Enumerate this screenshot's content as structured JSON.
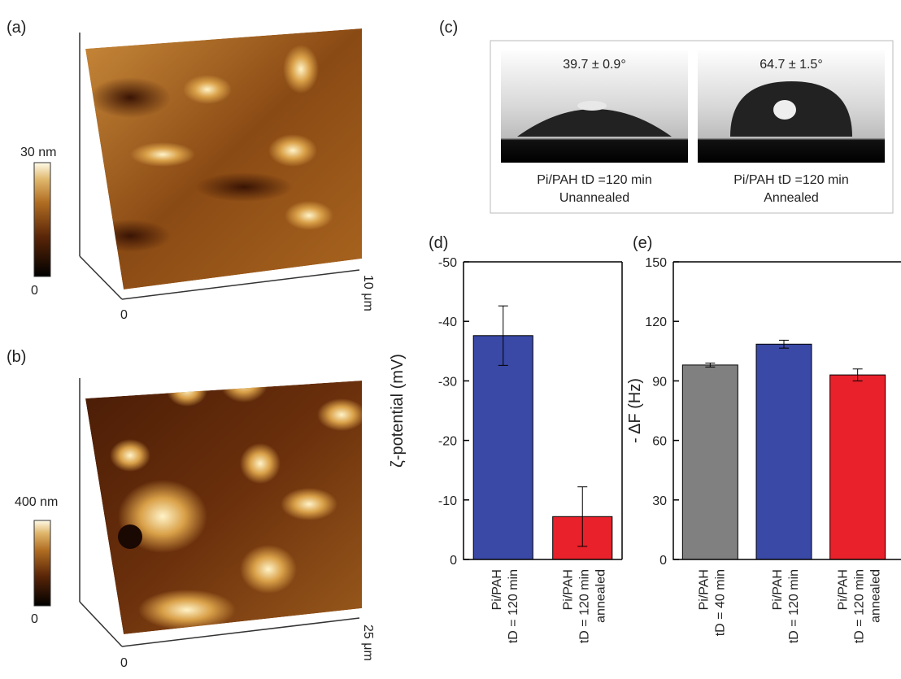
{
  "panels": {
    "a": {
      "letter": "(a)",
      "scale_max": "30 nm",
      "scale_min": "0",
      "axis_start": "0",
      "axis_end": "10 μm"
    },
    "b": {
      "letter": "(b)",
      "scale_max": "400 nm",
      "scale_min": "0",
      "axis_start": "0",
      "axis_end": "25 μm"
    },
    "c": {
      "letter": "(c)",
      "left": {
        "angle": "39.7 ± 0.9°",
        "caption": "Pi/PAH tD =120 min",
        "state": "Unannealed"
      },
      "right": {
        "angle": "64.7 ± 1.5°",
        "caption": "Pi/PAH tD =120 min",
        "state": "Annealed"
      }
    },
    "d": {
      "letter": "(d)"
    },
    "e": {
      "letter": "(e)"
    }
  },
  "chart_data": [
    {
      "type": "bar",
      "y_label": "ζ-potential (mV)",
      "categories": [
        [
          "Pi/PAH",
          "tD = 120 min"
        ],
        [
          "Pi/PAH",
          "tD = 120 min",
          "annealed"
        ]
      ],
      "values": [
        -37.6,
        -7.2
      ],
      "errors": [
        5,
        5
      ],
      "colors": [
        "#3a48a6",
        "#e8212b"
      ],
      "ylim": [
        0,
        -50
      ],
      "yticks": [
        0,
        -10,
        -20,
        -30,
        -40,
        -50
      ]
    },
    {
      "type": "bar",
      "y_label": "- ΔF (Hz)",
      "categories": [
        [
          "Pi/PAH",
          "tD = 40 min"
        ],
        [
          "Pi/PAH",
          "tD = 120 min"
        ],
        [
          "Pi/PAH",
          "tD = 120 min",
          "annealed"
        ]
      ],
      "values": [
        98,
        108.5,
        93
      ],
      "errors": [
        1,
        2,
        3
      ],
      "colors": [
        "#808080",
        "#3a48a6",
        "#e8212b"
      ],
      "ylim": [
        0,
        150
      ],
      "yticks": [
        0,
        30,
        60,
        90,
        120,
        150
      ]
    }
  ]
}
